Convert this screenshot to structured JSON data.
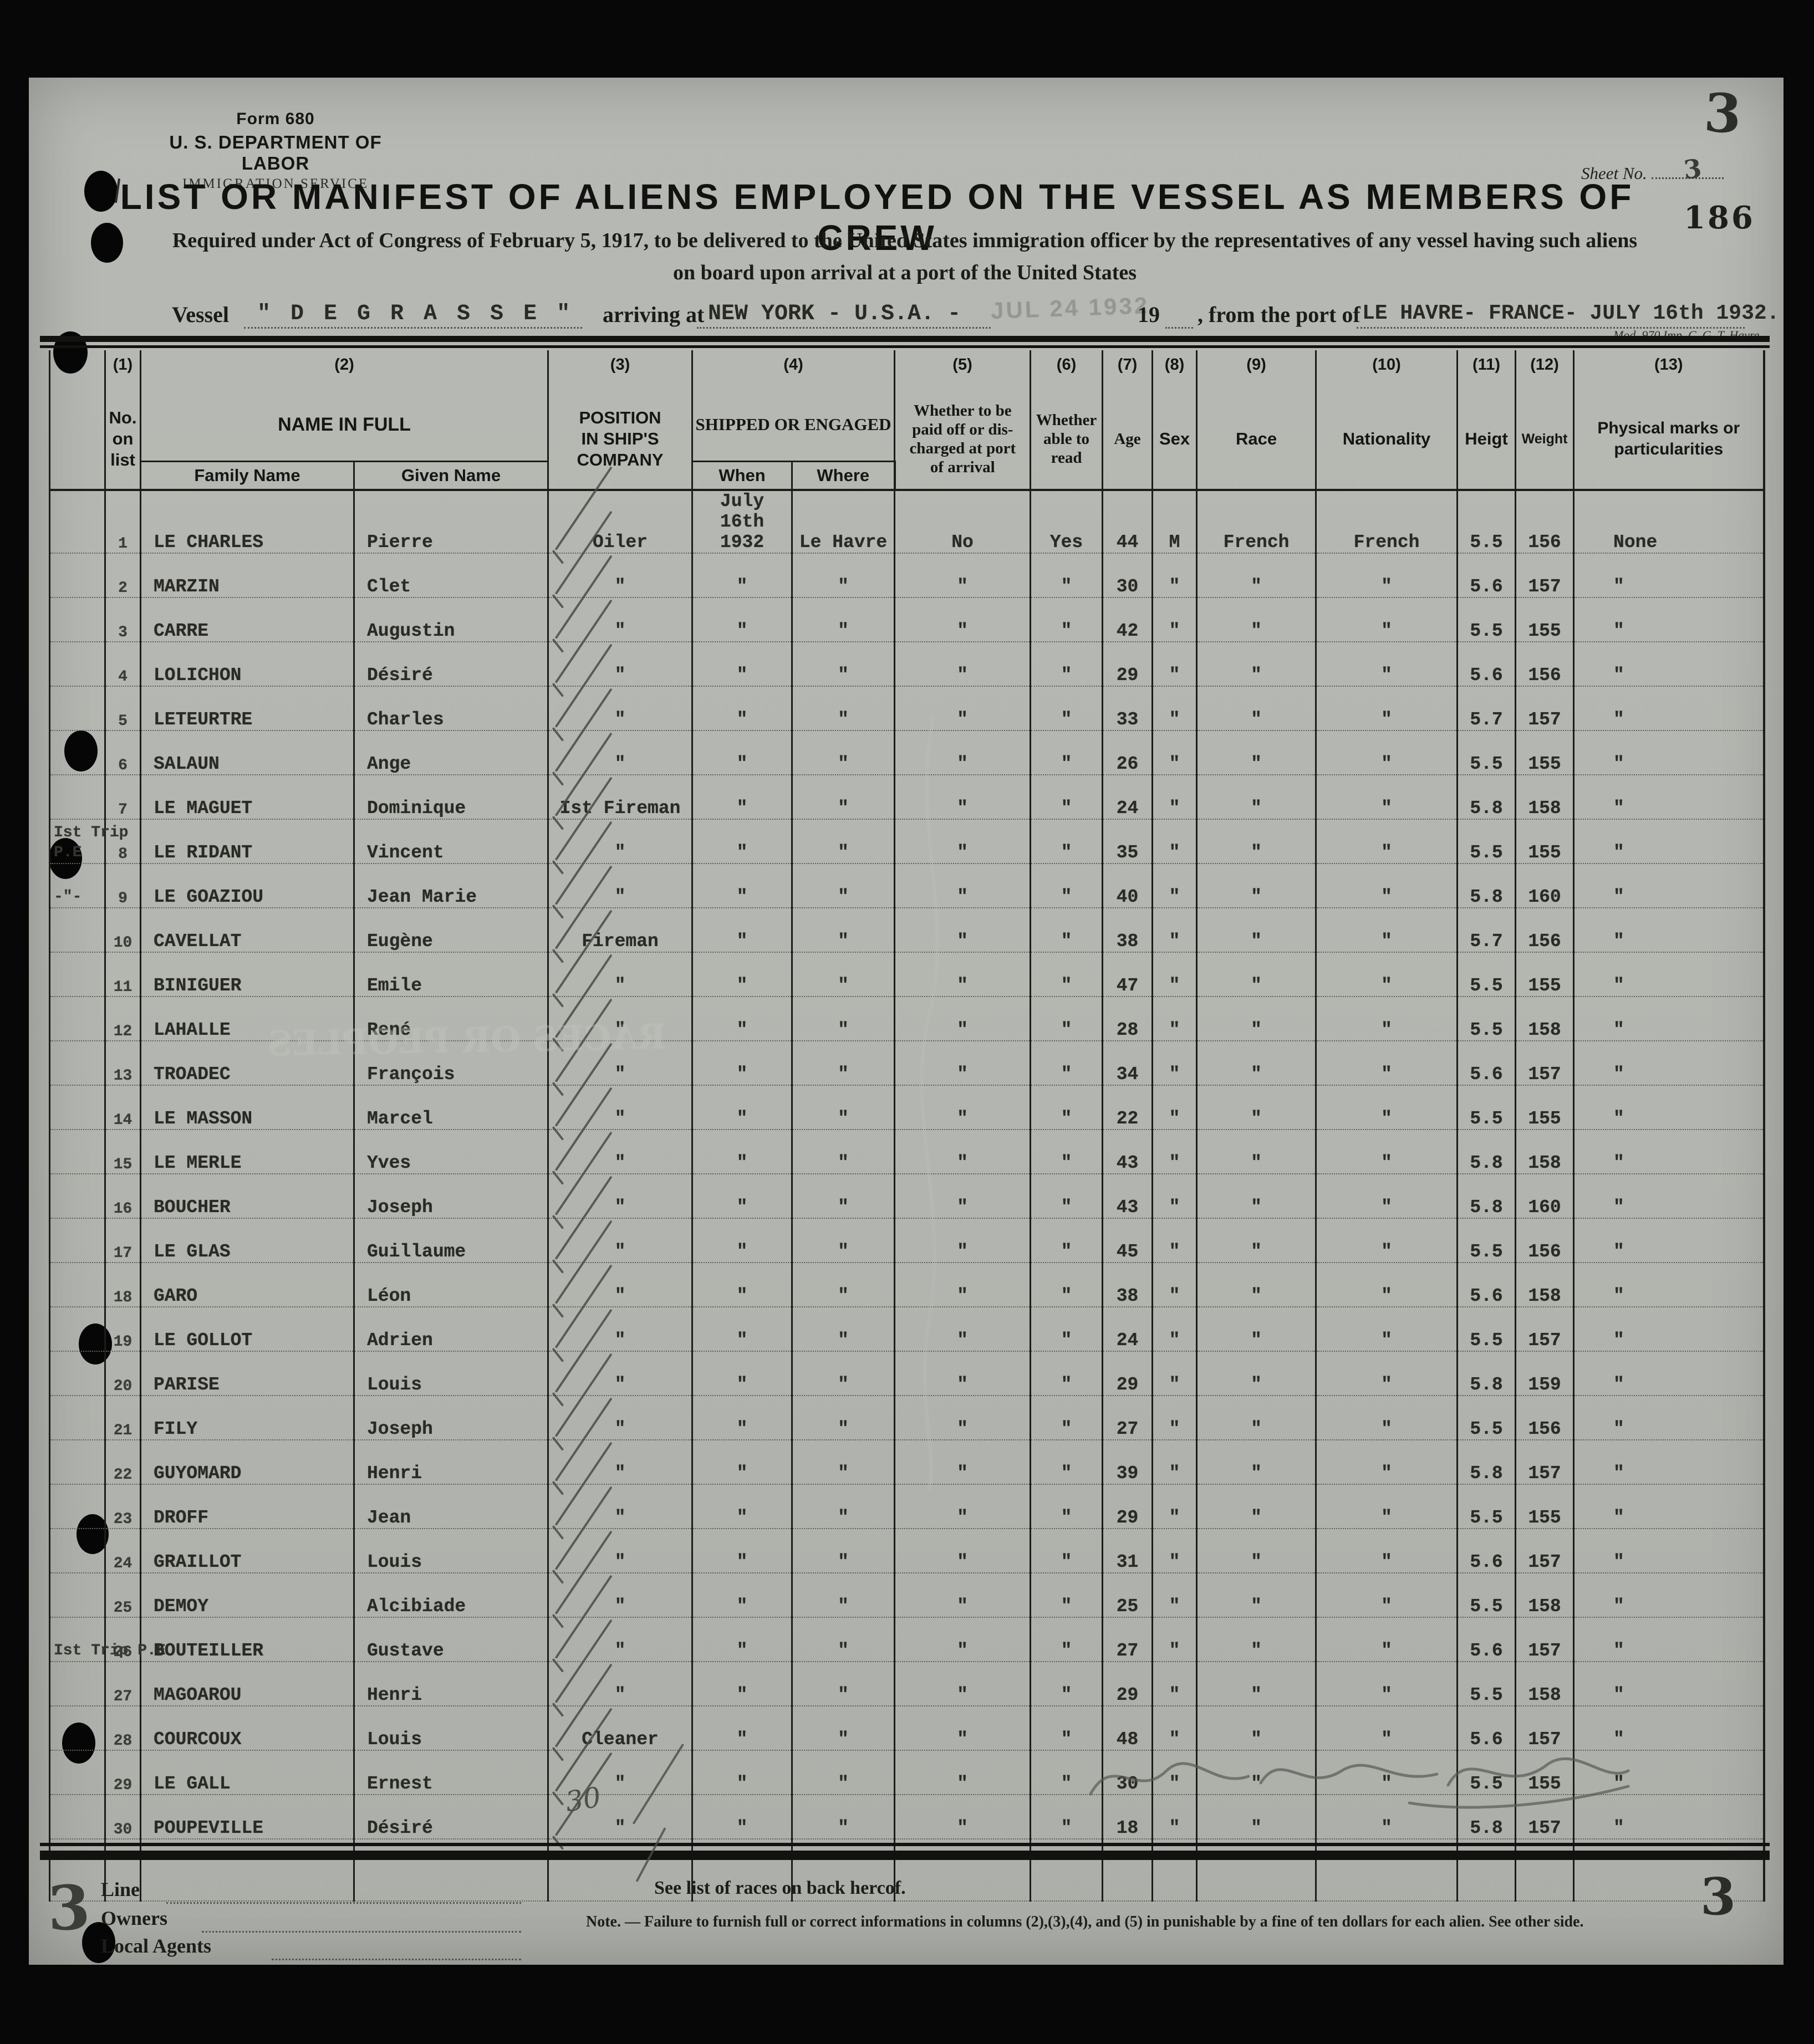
{
  "form": {
    "form_no": "Form 680",
    "dept": "U. S. DEPARTMENT OF LABOR",
    "service": "IMMIGRATION SERVICE",
    "sheet_label": "Sheet No.",
    "sheet_no_small": "3",
    "sheet_no_big": "3",
    "page_stamp": "186",
    "title": "LIST OR MANIFEST OF ALIENS EMPLOYED ON THE VESSEL AS MEMBERS OF CREW",
    "req1": "Required under Act of Congress of February 5, 1917, to be delivered to the United States immigration officer by the representatives of any vessel having such aliens",
    "req2": "on board upon arrival at a port of the United States",
    "mod_note": "Mod. 970  Imp. C. G. T. Havre"
  },
  "vessel": {
    "label": "Vessel",
    "name": "\" D E   G R A S S E \"",
    "arriving_label": "arriving at",
    "port_arrival": "NEW YORK - U.S.A. -",
    "date_stamp": "JUL 24 1932",
    "year": "19",
    "from_label": ", from the port of",
    "origin": "LE HAVRE- FRANCE- JULY 16th 1932."
  },
  "table": {
    "nums": {
      "c1": "(1)",
      "c2": "(2)",
      "c3": "(3)",
      "c4": "(4)",
      "c5": "(5)",
      "c6": "(6)",
      "c7": "(7)",
      "c8": "(8)",
      "c9": "(9)",
      "c10": "(10)",
      "c11": "(11)",
      "c12": "(12)",
      "c13": "(13)"
    },
    "h": {
      "no": "No.\non\nlist",
      "name": "NAME IN FULL",
      "family": "Family Name",
      "given": "Given Name",
      "position": "POSITION\nIN SHIP'S\nCOMPANY",
      "shipped": "SHIPPED OR ENGAGED",
      "when": "When",
      "where": "Where",
      "paid": "Whether to be\npaid off or dis-\ncharged at port\nof arrival",
      "read": "Whether\nable to\nread",
      "age": "Age",
      "sex": "Sex",
      "race": "Race",
      "nationality": "Nationality",
      "height": "Heigt",
      "weight": "Weight",
      "marks": "Physical marks or\nparticularities"
    },
    "rows": [
      {
        "n": "1",
        "note": "",
        "fam": "LE CHARLES",
        "giv": "Pierre",
        "pos": "Oiler",
        "when": "July 16th\n1932",
        "where": "Le Havre",
        "paid": "No",
        "read": "Yes",
        "age": "44",
        "sex": "M",
        "race": "French",
        "nat": "French",
        "h": "5.5",
        "w": "156",
        "marks": "None"
      },
      {
        "n": "2",
        "note": "",
        "fam": "MARZIN",
        "giv": "Clet",
        "pos": "\"",
        "when": "\"",
        "where": "\"",
        "paid": "\"",
        "read": "\"",
        "age": "30",
        "sex": "\"",
        "race": "\"",
        "nat": "\"",
        "h": "5.6",
        "w": "157",
        "marks": "\""
      },
      {
        "n": "3",
        "note": "",
        "fam": "CARRE",
        "giv": "Augustin",
        "pos": "\"",
        "when": "\"",
        "where": "\"",
        "paid": "\"",
        "read": "\"",
        "age": "42",
        "sex": "\"",
        "race": "\"",
        "nat": "\"",
        "h": "5.5",
        "w": "155",
        "marks": "\""
      },
      {
        "n": "4",
        "note": "",
        "fam": "LOLICHON",
        "giv": "Désiré",
        "pos": "\"",
        "when": "\"",
        "where": "\"",
        "paid": "\"",
        "read": "\"",
        "age": "29",
        "sex": "\"",
        "race": "\"",
        "nat": "\"",
        "h": "5.6",
        "w": "156",
        "marks": "\""
      },
      {
        "n": "5",
        "note": "",
        "fam": "LETEURTRE",
        "giv": "Charles",
        "pos": "\"",
        "when": "\"",
        "where": "\"",
        "paid": "\"",
        "read": "\"",
        "age": "33",
        "sex": "\"",
        "race": "\"",
        "nat": "\"",
        "h": "5.7",
        "w": "157",
        "marks": "\""
      },
      {
        "n": "6",
        "note": "",
        "fam": "SALAUN",
        "giv": "Ange",
        "pos": "\"",
        "when": "\"",
        "where": "\"",
        "paid": "\"",
        "read": "\"",
        "age": "26",
        "sex": "\"",
        "race": "\"",
        "nat": "\"",
        "h": "5.5",
        "w": "155",
        "marks": "\""
      },
      {
        "n": "7",
        "note": "",
        "fam": "LE MAGUET",
        "giv": "Dominique",
        "pos": "Ist Fireman",
        "when": "\"",
        "where": "\"",
        "paid": "\"",
        "read": "\"",
        "age": "24",
        "sex": "\"",
        "race": "\"",
        "nat": "\"",
        "h": "5.8",
        "w": "158",
        "marks": "\""
      },
      {
        "n": "8",
        "note": "Ist Trip\nP.E",
        "fam": "LE RIDANT",
        "giv": "Vincent",
        "pos": "\"",
        "when": "\"",
        "where": "\"",
        "paid": "\"",
        "read": "\"",
        "age": "35",
        "sex": "\"",
        "race": "\"",
        "nat": "\"",
        "h": "5.5",
        "w": "155",
        "marks": "\""
      },
      {
        "n": "9",
        "note": "-\"-",
        "fam": "LE GOAZIOU",
        "giv": "Jean Marie",
        "pos": "\"",
        "when": "\"",
        "where": "\"",
        "paid": "\"",
        "read": "\"",
        "age": "40",
        "sex": "\"",
        "race": "\"",
        "nat": "\"",
        "h": "5.8",
        "w": "160",
        "marks": "\""
      },
      {
        "n": "10",
        "note": "",
        "fam": "CAVELLAT",
        "giv": "Eugène",
        "pos": "Fireman",
        "when": "\"",
        "where": "\"",
        "paid": "\"",
        "read": "\"",
        "age": "38",
        "sex": "\"",
        "race": "\"",
        "nat": "\"",
        "h": "5.7",
        "w": "156",
        "marks": "\""
      },
      {
        "n": "11",
        "note": "",
        "fam": "BINIGUER",
        "giv": "Emile",
        "pos": "\"",
        "when": "\"",
        "where": "\"",
        "paid": "\"",
        "read": "\"",
        "age": "47",
        "sex": "\"",
        "race": "\"",
        "nat": "\"",
        "h": "5.5",
        "w": "155",
        "marks": "\""
      },
      {
        "n": "12",
        "note": "",
        "fam": "LAHALLE",
        "giv": "René",
        "pos": "\"",
        "when": "\"",
        "where": "\"",
        "paid": "\"",
        "read": "\"",
        "age": "28",
        "sex": "\"",
        "race": "\"",
        "nat": "\"",
        "h": "5.5",
        "w": "158",
        "marks": "\""
      },
      {
        "n": "13",
        "note": "",
        "fam": "TROADEC",
        "giv": "François",
        "pos": "\"",
        "when": "\"",
        "where": "\"",
        "paid": "\"",
        "read": "\"",
        "age": "34",
        "sex": "\"",
        "race": "\"",
        "nat": "\"",
        "h": "5.6",
        "w": "157",
        "marks": "\""
      },
      {
        "n": "14",
        "note": "",
        "fam": "LE MASSON",
        "giv": "Marcel",
        "pos": "\"",
        "when": "\"",
        "where": "\"",
        "paid": "\"",
        "read": "\"",
        "age": "22",
        "sex": "\"",
        "race": "\"",
        "nat": "\"",
        "h": "5.5",
        "w": "155",
        "marks": "\""
      },
      {
        "n": "15",
        "note": "",
        "fam": "LE MERLE",
        "giv": "Yves",
        "pos": "\"",
        "when": "\"",
        "where": "\"",
        "paid": "\"",
        "read": "\"",
        "age": "43",
        "sex": "\"",
        "race": "\"",
        "nat": "\"",
        "h": "5.8",
        "w": "158",
        "marks": "\""
      },
      {
        "n": "16",
        "note": "",
        "fam": "BOUCHER",
        "giv": "Joseph",
        "pos": "\"",
        "when": "\"",
        "where": "\"",
        "paid": "\"",
        "read": "\"",
        "age": "43",
        "sex": "\"",
        "race": "\"",
        "nat": "\"",
        "h": "5.8",
        "w": "160",
        "marks": "\""
      },
      {
        "n": "17",
        "note": "",
        "fam": "LE GLAS",
        "giv": "Guillaume",
        "pos": "\"",
        "when": "\"",
        "where": "\"",
        "paid": "\"",
        "read": "\"",
        "age": "45",
        "sex": "\"",
        "race": "\"",
        "nat": "\"",
        "h": "5.5",
        "w": "156",
        "marks": "\""
      },
      {
        "n": "18",
        "note": "",
        "fam": "GARO",
        "giv": "Léon",
        "pos": "\"",
        "when": "\"",
        "where": "\"",
        "paid": "\"",
        "read": "\"",
        "age": "38",
        "sex": "\"",
        "race": "\"",
        "nat": "\"",
        "h": "5.6",
        "w": "158",
        "marks": "\""
      },
      {
        "n": "19",
        "note": "",
        "fam": "LE GOLLOT",
        "giv": "Adrien",
        "pos": "\"",
        "when": "\"",
        "where": "\"",
        "paid": "\"",
        "read": "\"",
        "age": "24",
        "sex": "\"",
        "race": "\"",
        "nat": "\"",
        "h": "5.5",
        "w": "157",
        "marks": "\""
      },
      {
        "n": "20",
        "note": "",
        "fam": "PARISE",
        "giv": "Louis",
        "pos": "\"",
        "when": "\"",
        "where": "\"",
        "paid": "\"",
        "read": "\"",
        "age": "29",
        "sex": "\"",
        "race": "\"",
        "nat": "\"",
        "h": "5.8",
        "w": "159",
        "marks": "\""
      },
      {
        "n": "21",
        "note": "",
        "fam": "FILY",
        "giv": "Joseph",
        "pos": "\"",
        "when": "\"",
        "where": "\"",
        "paid": "\"",
        "read": "\"",
        "age": "27",
        "sex": "\"",
        "race": "\"",
        "nat": "\"",
        "h": "5.5",
        "w": "156",
        "marks": "\""
      },
      {
        "n": "22",
        "note": "",
        "fam": "GUYOMARD",
        "giv": "Henri",
        "pos": "\"",
        "when": "\"",
        "where": "\"",
        "paid": "\"",
        "read": "\"",
        "age": "39",
        "sex": "\"",
        "race": "\"",
        "nat": "\"",
        "h": "5.8",
        "w": "157",
        "marks": "\""
      },
      {
        "n": "23",
        "note": "",
        "fam": "DROFF",
        "giv": "Jean",
        "pos": "\"",
        "when": "\"",
        "where": "\"",
        "paid": "\"",
        "read": "\"",
        "age": "29",
        "sex": "\"",
        "race": "\"",
        "nat": "\"",
        "h": "5.5",
        "w": "155",
        "marks": "\""
      },
      {
        "n": "24",
        "note": "",
        "fam": "GRAILLOT",
        "giv": "Louis",
        "pos": "\"",
        "when": "\"",
        "where": "\"",
        "paid": "\"",
        "read": "\"",
        "age": "31",
        "sex": "\"",
        "race": "\"",
        "nat": "\"",
        "h": "5.6",
        "w": "157",
        "marks": "\""
      },
      {
        "n": "25",
        "note": "",
        "fam": "DEMOY",
        "giv": "Alcibiade",
        "pos": "\"",
        "when": "\"",
        "where": "\"",
        "paid": "\"",
        "read": "\"",
        "age": "25",
        "sex": "\"",
        "race": "\"",
        "nat": "\"",
        "h": "5.5",
        "w": "158",
        "marks": "\""
      },
      {
        "n": "26",
        "note": "Ist Trip P.E",
        "fam": "BOUTEILLER",
        "giv": "Gustave",
        "pos": "\"",
        "when": "\"",
        "where": "\"",
        "paid": "\"",
        "read": "\"",
        "age": "27",
        "sex": "\"",
        "race": "\"",
        "nat": "\"",
        "h": "5.6",
        "w": "157",
        "marks": "\""
      },
      {
        "n": "27",
        "note": "",
        "fam": "MAGOAROU",
        "giv": "Henri",
        "pos": "\"",
        "when": "\"",
        "where": "\"",
        "paid": "\"",
        "read": "\"",
        "age": "29",
        "sex": "\"",
        "race": "\"",
        "nat": "\"",
        "h": "5.5",
        "w": "158",
        "marks": "\""
      },
      {
        "n": "28",
        "note": "",
        "fam": "COURCOUX",
        "giv": "Louis",
        "pos": "Cleaner",
        "when": "\"",
        "where": "\"",
        "paid": "\"",
        "read": "\"",
        "age": "48",
        "sex": "\"",
        "race": "\"",
        "nat": "\"",
        "h": "5.6",
        "w": "157",
        "marks": "\""
      },
      {
        "n": "29",
        "note": "",
        "fam": "LE GALL",
        "giv": "Ernest",
        "pos": "\"",
        "when": "\"",
        "where": "\"",
        "paid": "\"",
        "read": "\"",
        "age": "30",
        "sex": "\"",
        "race": "\"",
        "nat": "\"",
        "h": "5.5",
        "w": "155",
        "marks": "\""
      },
      {
        "n": "30",
        "note": "",
        "fam": "POUPEVILLE",
        "giv": "Désiré",
        "pos": "\"",
        "when": "\"",
        "where": "\"",
        "paid": "\"",
        "read": "\"",
        "age": "18",
        "sex": "\"",
        "race": "\"",
        "nat": "\"",
        "h": "5.8",
        "w": "157",
        "marks": "\""
      }
    ]
  },
  "footer": {
    "line": "Line",
    "owners": "Owners",
    "agents": "Local Agents",
    "races_note": "See list of races on back hercof.",
    "note": "Note. — Failure to furnish full or correct informations in columns (2),(3),(4), and (5) in punishable by a fine of ten dollars for each alien. See other side.",
    "corner_left": "3",
    "corner_right": "3"
  },
  "annotations": {
    "count": "30",
    "bleed": "RACES OR PEOPLES"
  }
}
